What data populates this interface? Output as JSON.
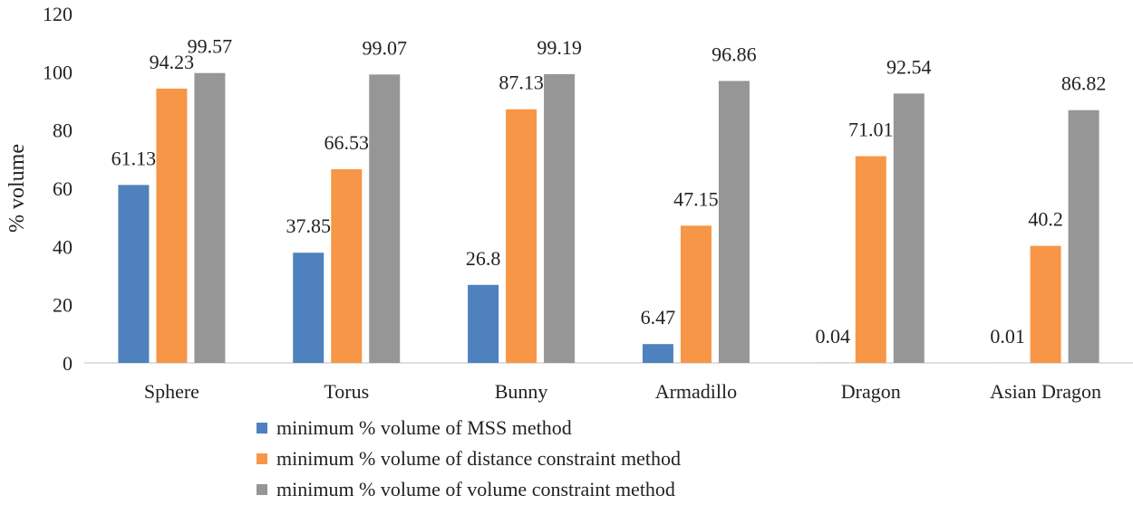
{
  "chart_data": {
    "type": "bar",
    "ylabel": "% volume",
    "ylim": [
      0,
      120
    ],
    "yticks": [
      0,
      20,
      40,
      60,
      80,
      100,
      120
    ],
    "grid": false,
    "legend_position": "bottom",
    "categories": [
      "Sphere",
      "Torus",
      "Bunny",
      "Armadillo",
      "Dragon",
      "Asian Dragon"
    ],
    "series": [
      {
        "name": "minimum % volume of MSS method",
        "color": "#4e81bd",
        "values": [
          61.13,
          37.85,
          26.8,
          6.47,
          0.04,
          0.01
        ],
        "labels": [
          "61.13",
          "37.85",
          "26.8",
          "6.47",
          "0.04",
          "0.01"
        ]
      },
      {
        "name": "minimum % volume of distance constraint method",
        "color": "#f79646",
        "values": [
          94.23,
          66.53,
          87.13,
          47.15,
          71.01,
          40.2
        ],
        "labels": [
          "94.23",
          "66.53",
          "87.13",
          "47.15",
          "71.01",
          "40.2"
        ]
      },
      {
        "name": "minimum % volume of volume constraint method",
        "color": "#969696",
        "values": [
          99.57,
          99.07,
          99.19,
          96.86,
          92.54,
          86.82
        ],
        "labels": [
          "99.57",
          "99.07",
          "99.19",
          "96.86",
          "92.54",
          "86.82"
        ]
      }
    ]
  }
}
